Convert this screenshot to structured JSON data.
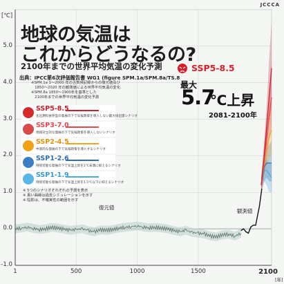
{
  "brand": "JCCCA",
  "title_line1": "地球の気温は",
  "title_line2": "これからどうなるの?",
  "subtitle": "2100年までの世界平均気温の変化予測",
  "source": "出典：IPCC第6次評価報告書 WG1 (figure SPM.1a/SPM.8a/TS.8",
  "notes": [
    "※SPM.1a 1〜2000 年の古気候記録からの復元値及び",
    "　1850〜2020 年の観測値による世界平均気温の変化",
    "※SPM.8a 1850〜1900年を基準とした",
    "　2100年までの世界平均気温の変化予測"
  ],
  "highlight": {
    "scenario": "SSP5-8.5",
    "max_label": "最大",
    "value": "5.7",
    "unit": "℃上昇",
    "period": "2081-2100年",
    "color": "#d81f2b"
  },
  "scenarios": [
    {
      "name": "SSP5-8.5",
      "desc": "化石燃料依存型の発展の下で気候政策を導入しない最大排出量シナリオ",
      "color": "#c8202c",
      "face": "#d32a2a"
    },
    {
      "name": "SSP3-7.0",
      "desc": "地域対立的な発展の下で気候政策を導入しないシナリオ",
      "color": "#e8464e",
      "face": "#d94a4a"
    },
    {
      "name": "SSP2-4.5",
      "desc": "中道的な発展の下で気候政策を導入するシナリオ",
      "color": "#f0a520",
      "face": "#f2a018"
    },
    {
      "name": "SSP1-2.6",
      "desc": "持続可能な発展の下で気温上昇を2℃未満に抑えるシナリオ",
      "color": "#2e6fb5",
      "face": "#3a7fc6"
    },
    {
      "name": "SSP1-1.9",
      "desc": "持続可能な発展の下で気温上昇を1.5℃以下に抑えるシナリオ",
      "color": "#4aa8de",
      "face": "#59b7e6"
    }
  ],
  "footnotes": [
    "※ 5つのシナリオそれぞれの予測を表示",
    "※ 黒い曲線は過去シミュレーションを示す",
    "※ 陰影は、不確実性の範囲を示す"
  ],
  "labels": {
    "reconstructed": "復元値",
    "observed": "観測値",
    "y_unit": "[℃]",
    "x_unit": "[年]"
  },
  "chart_data": {
    "type": "line",
    "ylabel": "[℃]",
    "xlabel": "[年]",
    "xlim": [
      1,
      2100
    ],
    "ylim": [
      -1.0,
      5.7
    ],
    "x_ticks": [
      1,
      500,
      1000,
      1500,
      2100
    ],
    "y_ticks": [
      -1.0,
      0.0,
      1.0,
      2.0,
      3.0,
      4.0,
      5.0
    ],
    "reconstructed": {
      "name": "復元値",
      "x": [
        1,
        50,
        100,
        150,
        200,
        250,
        300,
        350,
        400,
        450,
        500,
        550,
        600,
        650,
        700,
        750,
        800,
        850,
        900,
        950,
        1000,
        1050,
        1100,
        1150,
        1200,
        1250,
        1300,
        1350,
        1400,
        1450,
        1500,
        1550,
        1600,
        1650,
        1700,
        1750,
        1800,
        1850
      ],
      "y": [
        0.0,
        0.02,
        0.05,
        0.01,
        -0.02,
        0.0,
        0.04,
        0.02,
        -0.01,
        -0.04,
        -0.02,
        0.0,
        -0.05,
        -0.08,
        -0.03,
        -0.04,
        -0.02,
        0.02,
        0.04,
        0.06,
        0.08,
        0.05,
        0.03,
        0.04,
        0.02,
        0.0,
        -0.05,
        -0.08,
        -0.04,
        -0.1,
        -0.12,
        -0.14,
        -0.2,
        -0.22,
        -0.16,
        -0.15,
        -0.2,
        -0.12
      ]
    },
    "observed": {
      "name": "観測値",
      "x": [
        1850,
        1870,
        1890,
        1910,
        1930,
        1950,
        1970,
        1990,
        2000,
        2010,
        2020
      ],
      "y": [
        -0.05,
        0.0,
        -0.08,
        -0.12,
        0.05,
        0.1,
        0.1,
        0.45,
        0.6,
        0.85,
        1.1
      ]
    },
    "series": [
      {
        "name": "SSP5-8.5",
        "x": [
          2015,
          2040,
          2060,
          2080,
          2100
        ],
        "y": [
          1.2,
          2.0,
          2.8,
          3.6,
          4.4
        ],
        "range_low": [
          1.0,
          1.6,
          2.2,
          2.9,
          3.3
        ],
        "range_high": [
          1.4,
          2.4,
          3.4,
          4.6,
          5.7
        ]
      },
      {
        "name": "SSP3-7.0",
        "x": [
          2015,
          2040,
          2060,
          2080,
          2100
        ],
        "y": [
          1.2,
          1.9,
          2.5,
          3.1,
          3.6
        ],
        "range_low": [
          1.0,
          1.5,
          2.0,
          2.4,
          2.8
        ],
        "range_high": [
          1.4,
          2.3,
          3.0,
          3.8,
          4.6
        ]
      },
      {
        "name": "SSP2-4.5",
        "x": [
          2015,
          2040,
          2060,
          2080,
          2100
        ],
        "y": [
          1.2,
          1.8,
          2.2,
          2.5,
          2.7
        ],
        "range_low": [
          1.0,
          1.4,
          1.7,
          1.9,
          2.1
        ],
        "range_high": [
          1.4,
          2.2,
          2.6,
          3.1,
          3.5
        ]
      },
      {
        "name": "SSP1-2.6",
        "x": [
          2015,
          2040,
          2060,
          2080,
          2100
        ],
        "y": [
          1.2,
          1.7,
          1.8,
          1.8,
          1.8
        ],
        "range_low": [
          1.0,
          1.3,
          1.4,
          1.3,
          1.3
        ],
        "range_high": [
          1.4,
          2.0,
          2.2,
          2.3,
          2.4
        ]
      },
      {
        "name": "SSP1-1.9",
        "x": [
          2015,
          2040,
          2060,
          2080,
          2100
        ],
        "y": [
          1.2,
          1.6,
          1.6,
          1.5,
          1.4
        ],
        "range_low": [
          1.0,
          1.3,
          1.2,
          1.0,
          1.0
        ],
        "range_high": [
          1.4,
          1.9,
          1.9,
          1.8,
          1.8
        ]
      }
    ]
  }
}
